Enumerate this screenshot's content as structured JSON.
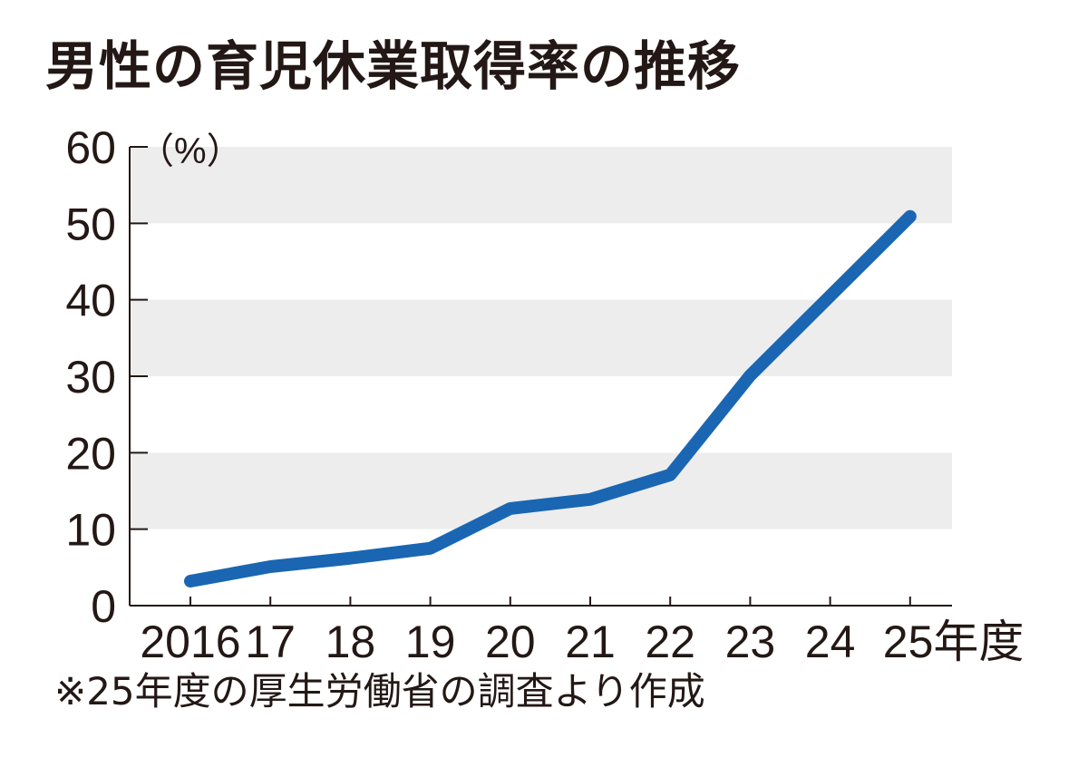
{
  "title": "男性の育児休業取得率の推移",
  "note": "※25年度の厚生労働省の調査より作成",
  "chart_data": {
    "type": "line",
    "title": "男性の育児休業取得率の推移",
    "y_unit": "（%）",
    "ylim": [
      0,
      60
    ],
    "y_ticks": [
      0,
      10,
      20,
      30,
      40,
      50,
      60
    ],
    "grid": "alternating horizontal bands",
    "x_tick_labels": [
      "2016",
      "17",
      "18",
      "19",
      "20",
      "21",
      "22",
      "23",
      "24",
      "25年度"
    ],
    "x": [
      2016,
      2017,
      2018,
      2019,
      2020,
      2021,
      2022,
      2023,
      2024,
      2025
    ],
    "series": [
      {
        "values": [
          3.2,
          5.1,
          6.2,
          7.5,
          12.7,
          13.9,
          17.1,
          30.1,
          40.5,
          50.9
        ],
        "color": "#1a66b3"
      }
    ],
    "band_color": "#ededed"
  }
}
